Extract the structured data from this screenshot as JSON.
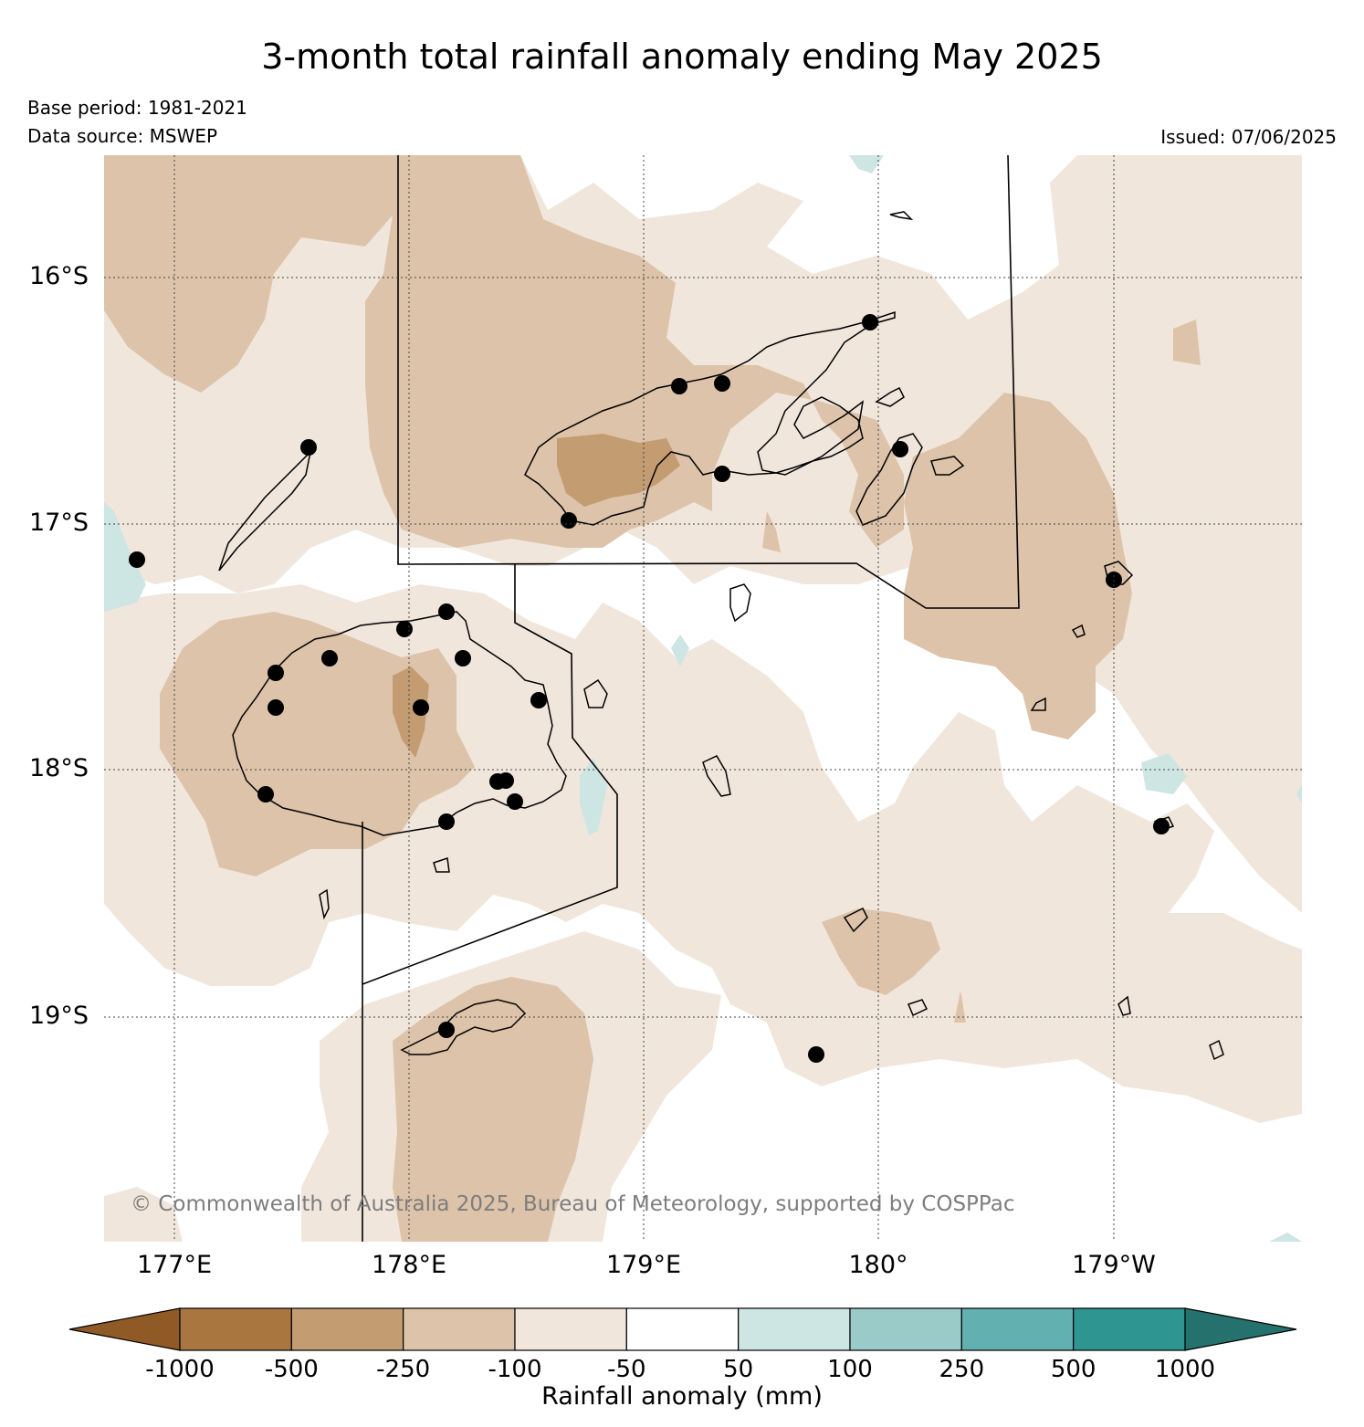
{
  "title": "3-month total rainfall anomaly ending May 2025",
  "base_period": "Base period: 1981-2021",
  "data_source": "Data source: MSWEP",
  "issued": "Issued: 07/06/2025",
  "copyright": "© Commonwealth of Australia 2025, Bureau of Meteorology, supported by COSPPac",
  "axes": {
    "lat_labels": [
      "16°S",
      "17°S",
      "18°S",
      "19°S"
    ],
    "lon_labels": [
      "177°E",
      "178°E",
      "179°E",
      "180°",
      "179°W"
    ]
  },
  "legend": {
    "title": "Rainfall anomaly (mm)",
    "ticks": [
      "-1000",
      "-500",
      "-250",
      "-100",
      "-50",
      "50",
      "100",
      "250",
      "500",
      "1000"
    ],
    "colors": [
      "#8f5a26",
      "#a97640",
      "#c49c72",
      "#dcc3aa",
      "#f0e6dc",
      "#ffffff",
      "#cde5e3",
      "#9bcbc9",
      "#62b0af",
      "#2e9591",
      "#25716d"
    ]
  },
  "colors": {
    "dry_light": "#f0e6dc",
    "dry_mid": "#dcc3aa",
    "dry_strong": "#c49c72",
    "wet_light": "#cde5e3"
  }
}
